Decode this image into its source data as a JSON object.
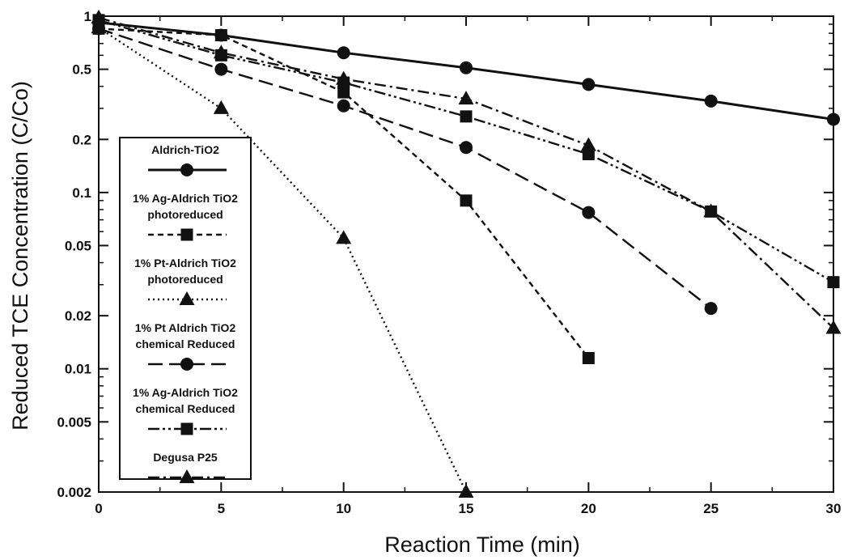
{
  "chart_data": {
    "type": "line",
    "title": "",
    "xlabel": "Reaction Time (min)",
    "ylabel": "Reduced TCE Concentration (C/Co)",
    "x_scale": "linear",
    "y_scale": "log",
    "xlim": [
      0,
      30
    ],
    "ylim": [
      0.002,
      1
    ],
    "x_ticks": [
      0,
      5,
      10,
      15,
      20,
      25,
      30
    ],
    "x_tick_labels": [
      "0",
      "5",
      "10",
      "15",
      "20",
      "25",
      "30"
    ],
    "y_ticks": [
      0.002,
      0.005,
      0.01,
      0.02,
      0.05,
      0.1,
      0.2,
      0.5,
      1
    ],
    "y_tick_labels": [
      "0.002",
      "0.005",
      "0.01",
      "0.02",
      "0.05",
      "0.1",
      "0.2",
      "0.5",
      "1"
    ],
    "grid": false,
    "legend_position": "left",
    "series": [
      {
        "name": "Aldrich-TiO2",
        "marker": "circle",
        "line_style": "solid",
        "points": [
          [
            0,
            0.92
          ],
          [
            5,
            0.78
          ],
          [
            10,
            0.62
          ],
          [
            15,
            0.51
          ],
          [
            20,
            0.41
          ],
          [
            25,
            0.33
          ],
          [
            30,
            0.26
          ]
        ]
      },
      {
        "name": "1% Ag-Aldrich TiO2 photoreduced",
        "marker": "square",
        "line_style": "short-dash",
        "points": [
          [
            0,
            0.85
          ],
          [
            5,
            0.78
          ],
          [
            10,
            0.37
          ],
          [
            15,
            0.09
          ],
          [
            20,
            0.0115
          ]
        ]
      },
      {
        "name": "1% Pt-Aldrich TiO2 photoreduced",
        "marker": "triangle",
        "line_style": "dotted",
        "points": [
          [
            0,
            0.86
          ],
          [
            5,
            0.3
          ],
          [
            10,
            0.055
          ],
          [
            15,
            0.002
          ]
        ]
      },
      {
        "name": "1% Pt Aldrich TiO2 chemical Reduced",
        "marker": "circle",
        "line_style": "long-dash",
        "points": [
          [
            0,
            0.85
          ],
          [
            5,
            0.5
          ],
          [
            10,
            0.31
          ],
          [
            15,
            0.18
          ],
          [
            20,
            0.077
          ],
          [
            25,
            0.022
          ]
        ]
      },
      {
        "name": "1% Ag-Aldrich TiO2 chemical Reduced",
        "marker": "square",
        "line_style": "dash-dot-dot",
        "points": [
          [
            0,
            0.95
          ],
          [
            5,
            0.6
          ],
          [
            10,
            0.42
          ],
          [
            15,
            0.27
          ],
          [
            20,
            0.165
          ],
          [
            25,
            0.078
          ],
          [
            30,
            0.031
          ]
        ]
      },
      {
        "name": "Degusa P25",
        "marker": "triangle",
        "line_style": "dash-dot",
        "points": [
          [
            0,
            0.98
          ],
          [
            5,
            0.62
          ],
          [
            10,
            0.44
          ],
          [
            15,
            0.34
          ],
          [
            20,
            0.185
          ],
          [
            25,
            0.078
          ],
          [
            30,
            0.017
          ]
        ]
      }
    ]
  },
  "legend": {
    "entries": [
      {
        "lines": [
          "Aldrich-TiO2"
        ]
      },
      {
        "lines": [
          "1% Ag-Aldrich TiO2",
          "photoreduced"
        ]
      },
      {
        "lines": [
          "1% Pt-Aldrich TiO2",
          "photoreduced"
        ]
      },
      {
        "lines": [
          "1% Pt Aldrich TiO2",
          "chemical Reduced"
        ]
      },
      {
        "lines": [
          "1% Ag-Aldrich TiO2",
          "chemical Reduced"
        ]
      },
      {
        "lines": [
          "Degusa P25"
        ]
      }
    ]
  },
  "colors": {
    "ink": "#111111",
    "background": "#ffffff"
  }
}
